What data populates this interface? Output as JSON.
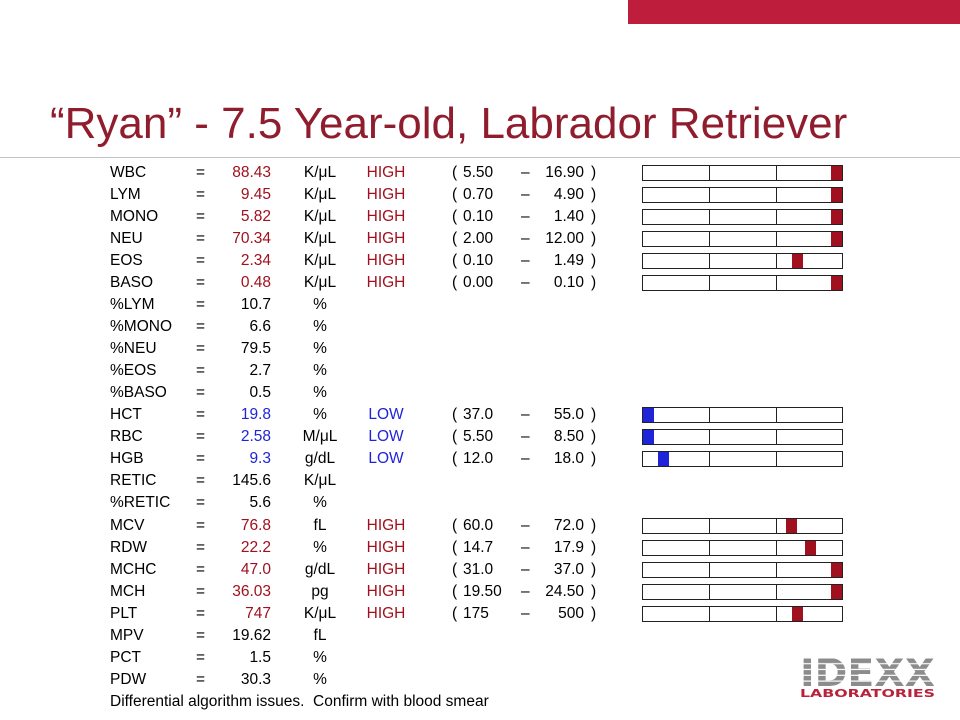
{
  "slide": {
    "title": "“Ryan” - 7.5 Year-old, Labrador Retriever"
  },
  "symbols": {
    "equals": "=",
    "open_paren": "(",
    "dash": "–",
    "close_paren": ")"
  },
  "rows": [
    {
      "name": "WBC",
      "value": "88.43",
      "unit": "K/μL",
      "flag": "HIGH",
      "range_low": "5.50",
      "range_high": "16.90",
      "gauge_level": 1.0
    },
    {
      "name": "LYM",
      "value": "9.45",
      "unit": "K/μL",
      "flag": "HIGH",
      "range_low": "0.70",
      "range_high": "4.90",
      "gauge_level": 1.0
    },
    {
      "name": "MONO",
      "value": "5.82",
      "unit": "K/μL",
      "flag": "HIGH",
      "range_low": "0.10",
      "range_high": "1.40",
      "gauge_level": 1.0
    },
    {
      "name": "NEU",
      "value": "70.34",
      "unit": "K/μL",
      "flag": "HIGH",
      "range_low": "2.00",
      "range_high": "12.00",
      "gauge_level": 1.0
    },
    {
      "name": "EOS",
      "value": "2.34",
      "unit": "K/μL",
      "flag": "HIGH",
      "range_low": "0.10",
      "range_high": "1.49",
      "gauge_level": 0.79
    },
    {
      "name": "BASO",
      "value": "0.48",
      "unit": "K/μL",
      "flag": "HIGH",
      "range_low": "0.00",
      "range_high": "0.10",
      "gauge_level": 1.0
    },
    {
      "name": "%LYM",
      "value": "10.7",
      "unit": "%"
    },
    {
      "name": "%MONO",
      "value": "6.6",
      "unit": "%"
    },
    {
      "name": "%NEU",
      "value": "79.5",
      "unit": "%"
    },
    {
      "name": "%EOS",
      "value": "2.7",
      "unit": "%"
    },
    {
      "name": "%BASO",
      "value": "0.5",
      "unit": "%"
    },
    {
      "name": "HCT",
      "value": "19.8",
      "unit": "%",
      "flag": "LOW",
      "range_low": "37.0",
      "range_high": "55.0",
      "gauge_level": 0.0
    },
    {
      "name": "RBC",
      "value": "2.58",
      "unit": "M/μL",
      "flag": "LOW",
      "range_low": "5.50",
      "range_high": "8.50",
      "gauge_level": 0.0
    },
    {
      "name": "HGB",
      "value": "9.3",
      "unit": "g/dL",
      "flag": "LOW",
      "range_low": "12.0",
      "range_high": "18.0",
      "gauge_level": 0.08
    },
    {
      "name": "RETIC",
      "value": "145.6",
      "unit": "K/μL"
    },
    {
      "name": "%RETIC",
      "value": "5.6",
      "unit": "%"
    },
    {
      "name": "MCV",
      "value": "76.8",
      "unit": "fL",
      "flag": "HIGH",
      "range_low": "60.0",
      "range_high": "72.0",
      "gauge_level": 0.76
    },
    {
      "name": "RDW",
      "value": "22.2",
      "unit": "%",
      "flag": "HIGH",
      "range_low": "14.7",
      "range_high": "17.9",
      "gauge_level": 0.86
    },
    {
      "name": "MCHC",
      "value": "47.0",
      "unit": "g/dL",
      "flag": "HIGH",
      "range_low": "31.0",
      "range_high": "37.0",
      "gauge_level": 1.0
    },
    {
      "name": "MCH",
      "value": "36.03",
      "unit": "pg",
      "flag": "HIGH",
      "range_low": "19.50",
      "range_high": "24.50",
      "gauge_level": 1.0
    },
    {
      "name": "PLT",
      "value": "747",
      "unit": "K/μL",
      "flag": "HIGH",
      "range_low": "175",
      "range_high": "500",
      "gauge_level": 0.79
    },
    {
      "name": "MPV",
      "value": "19.62",
      "unit": "fL"
    },
    {
      "name": "PCT",
      "value": "1.5",
      "unit": "%"
    },
    {
      "name": "PDW",
      "value": "30.3",
      "unit": "%"
    }
  ],
  "footer": {
    "note": "Differential algorithm issues.  Confirm with blood smear"
  },
  "logo": {
    "wordmark": "IDEXX",
    "tagline": "LABORATORIES"
  },
  "colors": {
    "accent_bar": "#BE1E3C",
    "title": "#8F1D2E",
    "high": "#A0101E",
    "low": "#1F24D8",
    "logo_gray": "#8C8C8C",
    "logo_red": "#B8223A"
  }
}
